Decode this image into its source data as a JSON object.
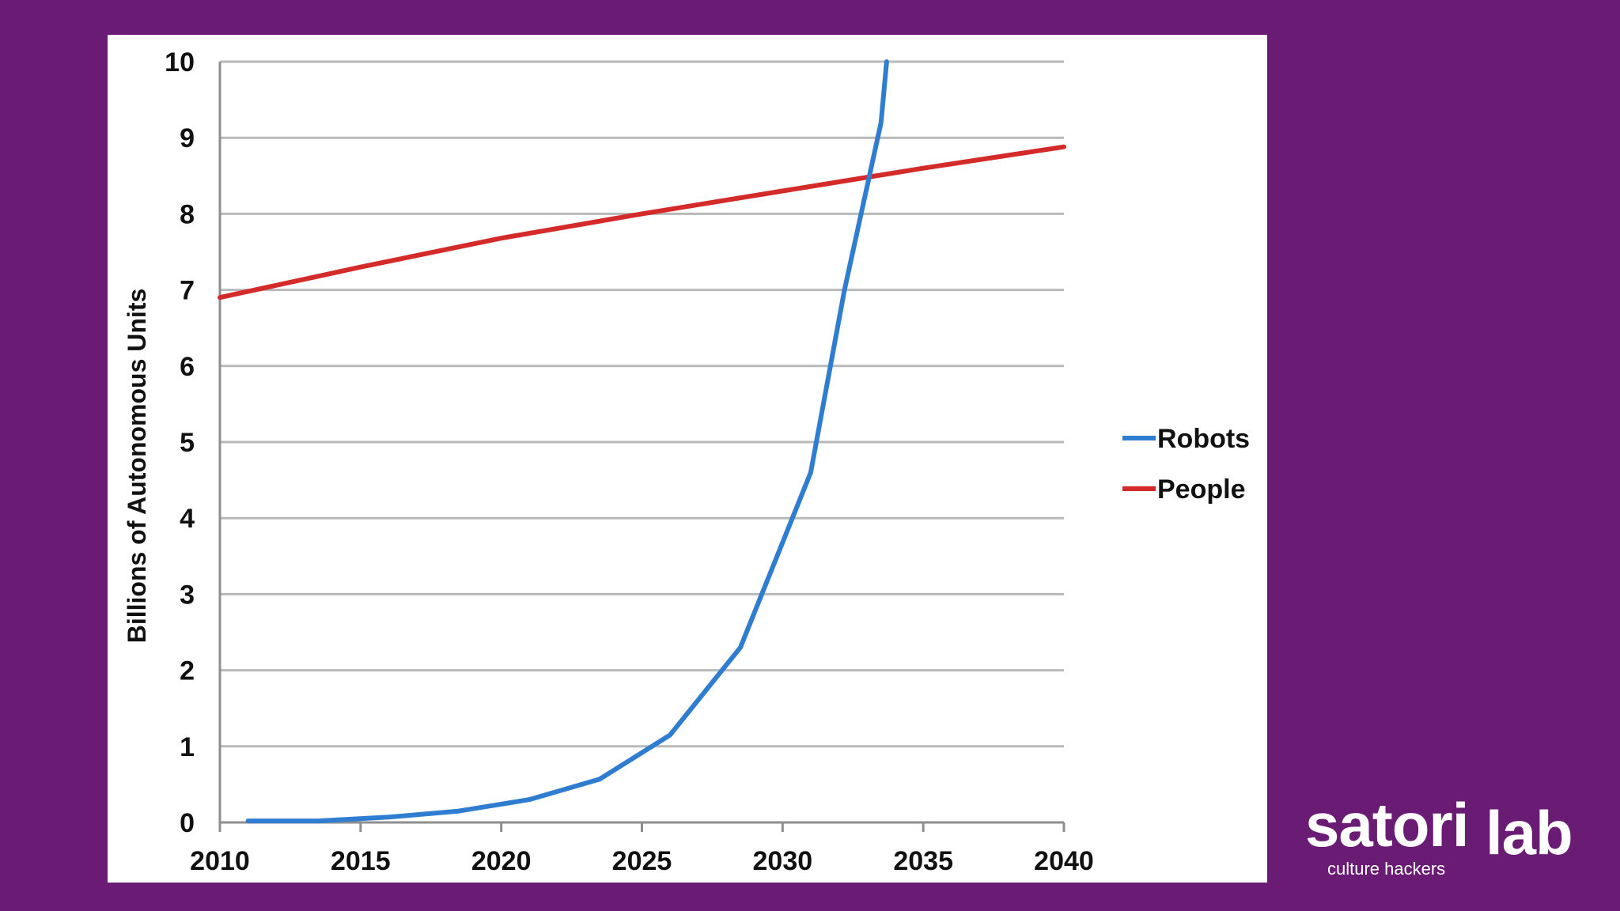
{
  "chart_data": {
    "type": "line",
    "title": "",
    "xlabel": "",
    "ylabel": "Billions of Autonomous Units",
    "xlim": [
      2010,
      2040
    ],
    "ylim": [
      0,
      10
    ],
    "x_ticks": [
      "2010",
      "2015",
      "2020",
      "2025",
      "2030",
      "2035",
      "2040"
    ],
    "y_ticks": [
      "0",
      "1",
      "2",
      "3",
      "4",
      "5",
      "6",
      "7",
      "8",
      "9",
      "10"
    ],
    "grid": true,
    "legend_position": "right",
    "series": [
      {
        "name": "Robots",
        "color": "#2f7dd0",
        "points": [
          [
            2011,
            0.02
          ],
          [
            2013.5,
            0.02
          ],
          [
            2016,
            0.07
          ],
          [
            2018.5,
            0.15
          ],
          [
            2021,
            0.3
          ],
          [
            2023.5,
            0.57
          ],
          [
            2026,
            1.15
          ],
          [
            2028.5,
            2.3
          ],
          [
            2031,
            4.6
          ],
          [
            2032.2,
            7.0
          ],
          [
            2033.5,
            9.2
          ],
          [
            2033.7,
            10.0
          ]
        ]
      },
      {
        "name": "People",
        "color": "#d42a2a",
        "points": [
          [
            2010,
            6.9
          ],
          [
            2015,
            7.3
          ],
          [
            2020,
            7.68
          ],
          [
            2025,
            8.0
          ],
          [
            2030,
            8.3
          ],
          [
            2035,
            8.6
          ],
          [
            2040,
            8.88
          ]
        ]
      }
    ]
  },
  "brand": {
    "name_part1": "satori",
    "name_part2": "lab",
    "tagline": "culture hackers"
  }
}
